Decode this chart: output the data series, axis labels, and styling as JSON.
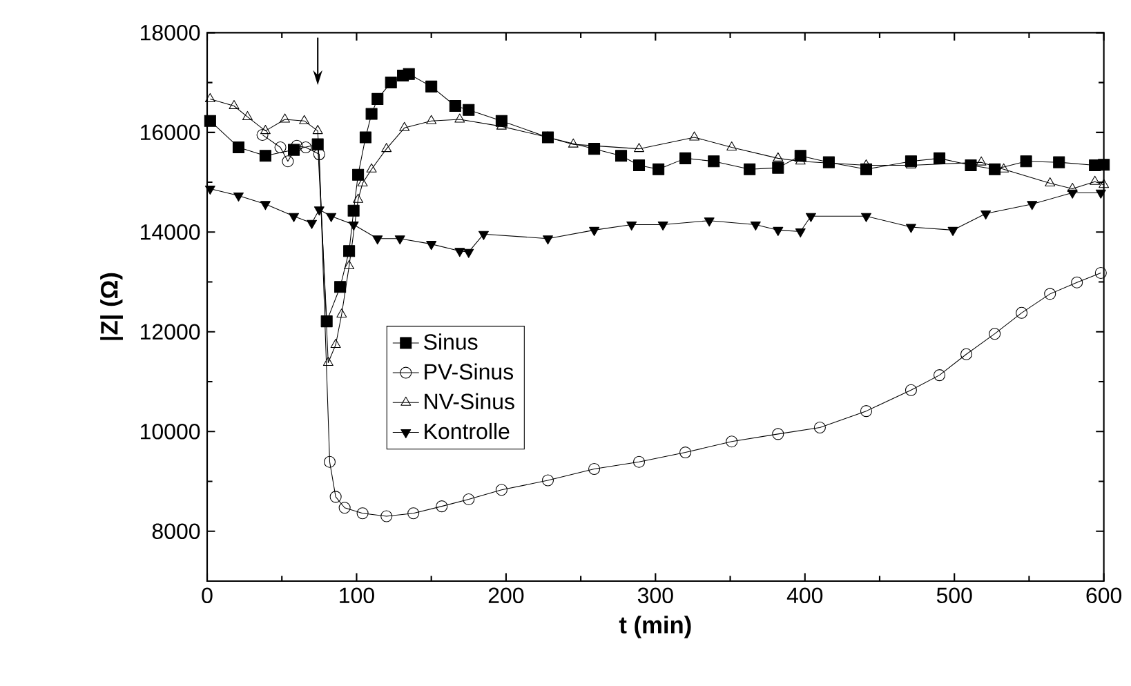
{
  "chart_data": {
    "type": "line",
    "xlabel": "t (min)",
    "ylabel": "|Z|  (Ω)",
    "xlim": [
      0,
      600
    ],
    "ylim": [
      7000,
      18000
    ],
    "xticks": [
      0,
      100,
      200,
      300,
      400,
      500,
      600
    ],
    "yticks": [
      8000,
      10000,
      12000,
      14000,
      16000,
      18000
    ],
    "legend": "center left",
    "line_style": "solid",
    "grid": false,
    "series": [
      {
        "name": "Sinus",
        "color": "#000000",
        "marker": "square",
        "x": [
          2,
          21,
          39,
          58,
          74,
          80,
          89,
          95,
          98,
          101,
          106,
          110,
          114,
          123,
          131,
          135,
          150,
          166,
          175,
          197,
          228,
          259,
          277,
          289,
          302,
          320,
          339,
          363,
          382,
          397,
          416,
          441,
          471,
          490,
          511,
          527,
          548,
          570,
          594,
          600
        ],
        "values": [
          16230,
          15700,
          15530,
          15650,
          15760,
          12210,
          12900,
          13620,
          14430,
          15150,
          15900,
          16370,
          16670,
          17000,
          17140,
          17170,
          16920,
          16530,
          16450,
          16230,
          15900,
          15670,
          15530,
          15340,
          15260,
          15480,
          15420,
          15260,
          15290,
          15530,
          15400,
          15260,
          15420,
          15480,
          15340,
          15260,
          15420,
          15400,
          15340,
          15350
        ]
      },
      {
        "name": "PV-Sinus",
        "color": "#000000",
        "marker": "circle",
        "x": [
          37,
          49,
          54,
          60,
          66,
          75,
          82,
          86,
          92,
          104,
          120,
          138,
          157,
          175,
          197,
          228,
          259,
          289,
          320,
          351,
          382,
          410,
          441,
          471,
          490,
          508,
          527,
          545,
          564,
          582,
          598
        ],
        "values": [
          15950,
          15700,
          15420,
          15730,
          15700,
          15560,
          9390,
          8690,
          8470,
          8360,
          8300,
          8360,
          8500,
          8640,
          8830,
          9020,
          9250,
          9390,
          9580,
          9800,
          9950,
          10080,
          10410,
          10830,
          11130,
          11550,
          11960,
          12380,
          12760,
          12990,
          13180
        ]
      },
      {
        "name": "NV-Sinus",
        "color": "#000000",
        "marker": "triangle",
        "x": [
          2,
          18,
          27,
          39,
          52,
          65,
          74,
          81,
          86,
          90,
          95,
          101,
          104,
          110,
          120,
          132,
          150,
          169,
          197,
          228,
          245,
          289,
          326,
          351,
          382,
          397,
          441,
          471,
          518,
          533,
          564,
          579,
          594,
          600
        ],
        "values": [
          16670,
          16530,
          16310,
          16030,
          16260,
          16230,
          16030,
          11380,
          11740,
          12350,
          13320,
          14650,
          14980,
          15260,
          15670,
          16090,
          16230,
          16260,
          16120,
          15900,
          15760,
          15670,
          15900,
          15700,
          15480,
          15420,
          15340,
          15340,
          15400,
          15260,
          14980,
          14870,
          15010,
          14950
        ]
      },
      {
        "name": "Kontrolle",
        "color": "#000000",
        "marker": "triangle down",
        "x": [
          2,
          21,
          39,
          58,
          70,
          75,
          83,
          98,
          114,
          129,
          150,
          169,
          175,
          185,
          228,
          259,
          284,
          305,
          336,
          367,
          382,
          397,
          404,
          441,
          471,
          499,
          521,
          552,
          579,
          598
        ],
        "values": [
          14870,
          14730,
          14560,
          14320,
          14180,
          14450,
          14320,
          14150,
          13870,
          13870,
          13760,
          13620,
          13600,
          13960,
          13870,
          14040,
          14150,
          14150,
          14230,
          14150,
          14040,
          14010,
          14320,
          14320,
          14100,
          14040,
          14370,
          14560,
          14790,
          14790
        ]
      }
    ]
  }
}
